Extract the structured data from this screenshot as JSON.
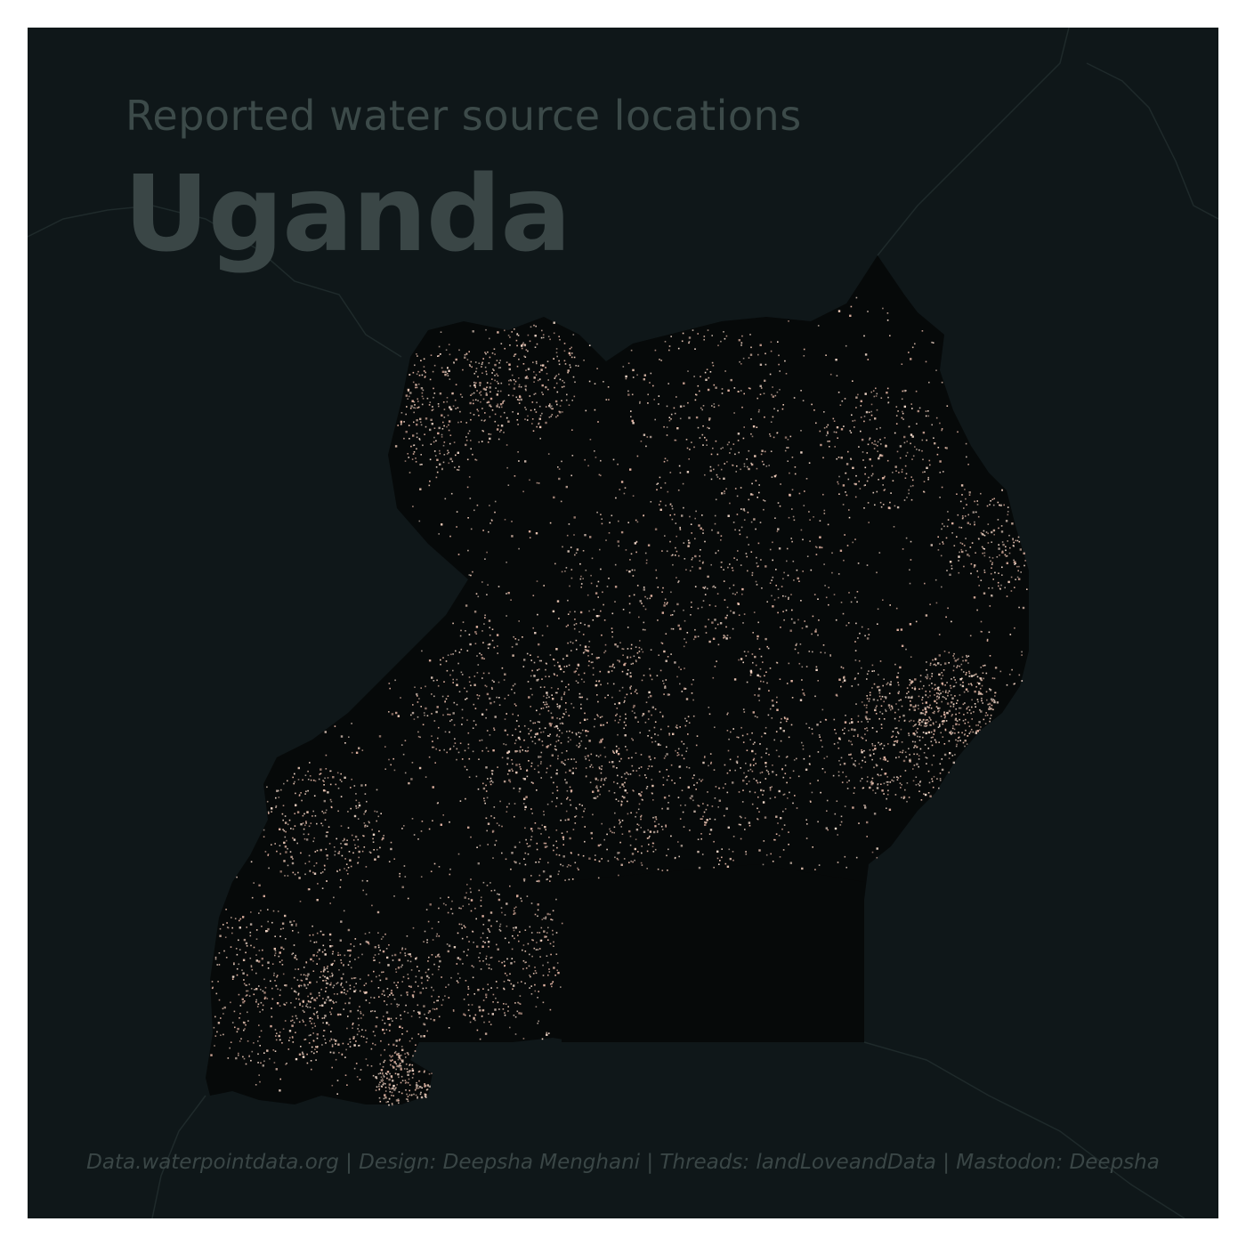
{
  "subtitle": "Reported water source locations",
  "title": "Uganda",
  "credits": "Data.waterpointdata.org | Design: Deepsha Menghani | Threads: landLoveandData | Mastodon: Deepsha",
  "colors": {
    "background": "#0f1719",
    "country_fill": "#060909",
    "neighbour_border": "#1f2a2b",
    "point_light": "#f6dccd",
    "point_mid": "#e8b8a6",
    "title_text": "#3a4646"
  }
}
